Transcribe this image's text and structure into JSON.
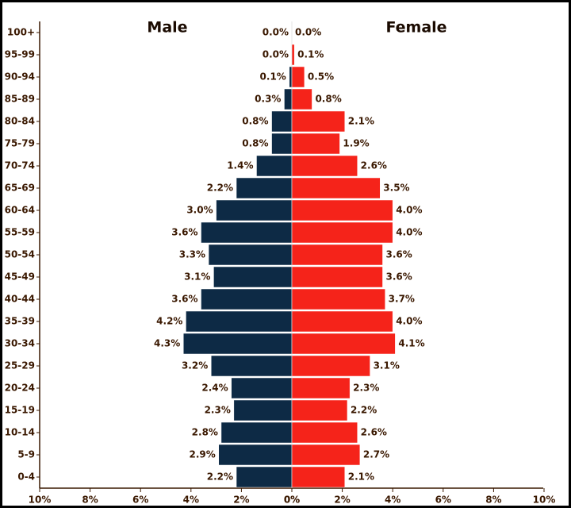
{
  "chart_data": {
    "type": "pyramid",
    "categories": [
      "100+",
      "95-99",
      "90-94",
      "85-89",
      "80-84",
      "75-79",
      "70-74",
      "65-69",
      "60-64",
      "55-59",
      "50-54",
      "45-49",
      "40-44",
      "35-39",
      "30-34",
      "25-29",
      "20-24",
      "15-19",
      "10-14",
      "5-9",
      "0-4"
    ],
    "series": [
      {
        "name": "Male",
        "color": "#0d2a45",
        "side": "left",
        "values": [
          0.0,
          0.0,
          0.1,
          0.3,
          0.8,
          0.8,
          1.4,
          2.2,
          3.0,
          3.6,
          3.3,
          3.1,
          3.6,
          4.2,
          4.3,
          3.2,
          2.4,
          2.3,
          2.8,
          2.9,
          2.2
        ],
        "value_labels": [
          "0.0%",
          "0.0%",
          "0.1%",
          "0.3%",
          "0.8%",
          "0.8%",
          "1.4%",
          "2.2%",
          "3.0%",
          "3.6%",
          "3.3%",
          "3.1%",
          "3.6%",
          "4.2%",
          "4.3%",
          "3.2%",
          "2.4%",
          "2.3%",
          "2.8%",
          "2.9%",
          "2.2%"
        ]
      },
      {
        "name": "Female",
        "color": "#f5231a",
        "side": "right",
        "values": [
          0.0,
          0.1,
          0.5,
          0.8,
          2.1,
          1.9,
          2.6,
          3.5,
          4.0,
          4.0,
          3.6,
          3.6,
          3.7,
          4.0,
          4.1,
          3.1,
          2.3,
          2.2,
          2.6,
          2.7,
          2.1
        ],
        "value_labels": [
          "0.0%",
          "0.1%",
          "0.5%",
          "0.8%",
          "2.1%",
          "1.9%",
          "2.6%",
          "3.5%",
          "4.0%",
          "4.0%",
          "3.6%",
          "3.6%",
          "3.7%",
          "4.0%",
          "4.1%",
          "3.1%",
          "2.3%",
          "2.2%",
          "2.6%",
          "2.7%",
          "2.1%"
        ]
      }
    ],
    "xlim": [
      0,
      10
    ],
    "xticks": [
      {
        "value": 0,
        "label": "0%"
      },
      {
        "value": 2,
        "label": "2%"
      },
      {
        "value": 4,
        "label": "4%"
      },
      {
        "value": 6,
        "label": "6%"
      },
      {
        "value": 8,
        "label": "8%"
      },
      {
        "value": 10,
        "label": "10%"
      }
    ]
  }
}
